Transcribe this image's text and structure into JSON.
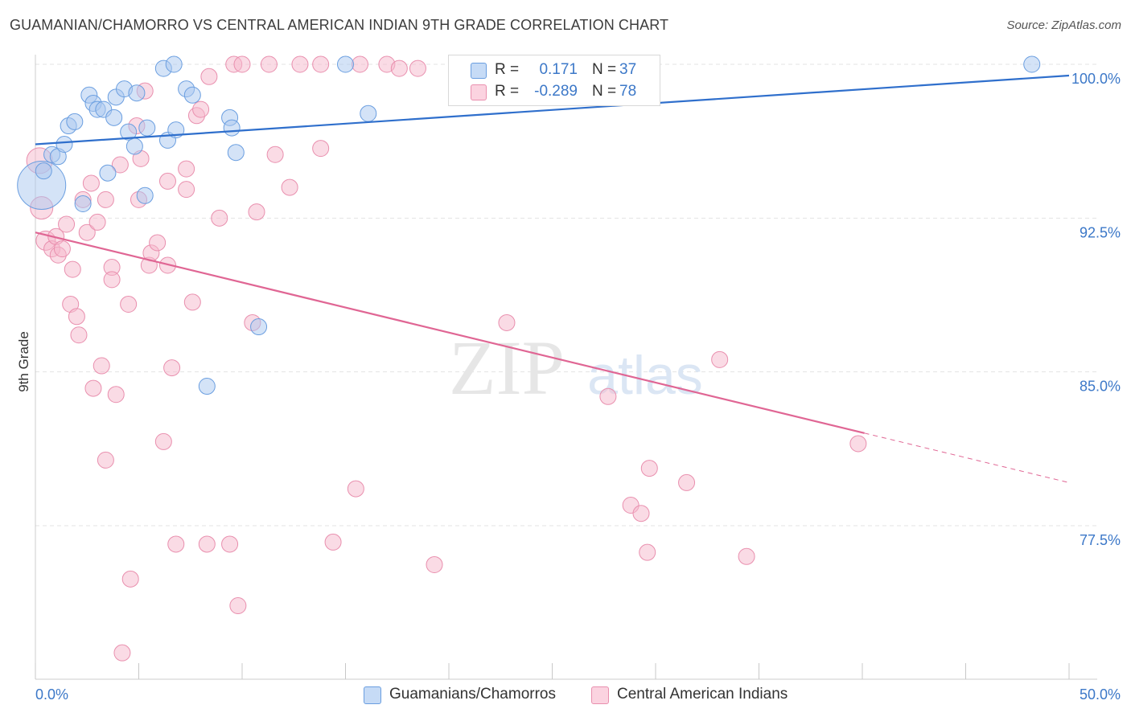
{
  "title": "GUAMANIAN/CHAMORRO VS CENTRAL AMERICAN INDIAN 9TH GRADE CORRELATION CHART",
  "source": "Source: ZipAtlas.com",
  "watermark": {
    "zip": "ZIP",
    "atlas": "atlas"
  },
  "legend": {
    "rows": [
      {
        "r_label": "R =",
        "r_value": "0.171",
        "n_label": "N =",
        "n_value": "37",
        "color": "#a9c8f0"
      },
      {
        "r_label": "R =",
        "r_value": "-0.289",
        "n_label": "N =",
        "n_value": "78",
        "color": "#f5b8cc"
      }
    ]
  },
  "bottom_legend": {
    "items": [
      {
        "label": "Guamanians/Chamorros",
        "color": "#a9c8f0"
      },
      {
        "label": "Central American Indians",
        "color": "#f5b8cc"
      }
    ]
  },
  "chart_data": {
    "type": "scatter",
    "title": "GUAMANIAN/CHAMORRO VS CENTRAL AMERICAN INDIAN 9TH GRADE CORRELATION CHART",
    "xlabel": "",
    "ylabel": "9th Grade",
    "xlim": [
      0,
      50
    ],
    "ylim": [
      71.2,
      100.6
    ],
    "x_tick_labels": [
      "0.0%",
      "50.0%"
    ],
    "y_ticks": [
      100.0,
      92.5,
      85.0,
      77.5
    ],
    "y_tick_labels": [
      "100.0%",
      "92.5%",
      "85.0%",
      "77.5%"
    ],
    "grid": true,
    "colors": {
      "blue_fill": "#a9c8f0",
      "blue_stroke": "#6a9ee0",
      "blue_line": "#2f6fcc",
      "pink_fill": "#f5b8cc",
      "pink_stroke": "#e98fae",
      "pink_line": "#e06694",
      "tick_label": "#3c78c8"
    },
    "series": [
      {
        "name": "Guamanians/Chamorros",
        "trend": {
          "x": [
            0,
            50
          ],
          "y": [
            96.1,
            99.45
          ],
          "dashed_from": null
        },
        "points": [
          [
            0.3,
            94.1,
            30
          ],
          [
            0.4,
            94.8,
            10
          ],
          [
            0.8,
            95.6,
            10
          ],
          [
            1.1,
            95.5,
            10
          ],
          [
            1.4,
            96.1,
            10
          ],
          [
            1.6,
            97.0,
            10
          ],
          [
            1.9,
            97.2,
            10
          ],
          [
            2.3,
            93.2,
            10
          ],
          [
            2.6,
            98.5,
            10
          ],
          [
            2.8,
            98.1,
            10
          ],
          [
            3.0,
            97.8,
            10
          ],
          [
            3.3,
            97.8,
            10
          ],
          [
            3.5,
            94.7,
            10
          ],
          [
            3.8,
            97.4,
            10
          ],
          [
            3.9,
            98.4,
            10
          ],
          [
            4.3,
            98.8,
            10
          ],
          [
            4.5,
            96.7,
            10
          ],
          [
            4.8,
            96.0,
            10
          ],
          [
            4.9,
            98.6,
            10
          ],
          [
            5.3,
            93.6,
            10
          ],
          [
            5.4,
            96.9,
            10
          ],
          [
            6.2,
            99.8,
            10
          ],
          [
            6.4,
            96.3,
            10
          ],
          [
            6.7,
            100.0,
            10
          ],
          [
            6.8,
            96.8,
            10
          ],
          [
            7.3,
            98.8,
            10
          ],
          [
            7.6,
            98.5,
            10
          ],
          [
            8.3,
            84.3,
            10
          ],
          [
            9.4,
            97.4,
            10
          ],
          [
            9.5,
            96.9,
            10
          ],
          [
            9.7,
            95.7,
            10
          ],
          [
            10.8,
            87.2,
            10
          ],
          [
            15.0,
            100.0,
            10
          ],
          [
            16.1,
            97.6,
            10
          ],
          [
            48.2,
            100.0,
            10
          ]
        ]
      },
      {
        "name": "Central American Indians",
        "trend": {
          "x": [
            0,
            50
          ],
          "y": [
            91.8,
            79.6
          ],
          "dashed_from": 40.1
        },
        "points": [
          [
            0.2,
            95.3,
            16
          ],
          [
            0.3,
            93.0,
            14
          ],
          [
            0.5,
            91.4,
            12
          ],
          [
            0.8,
            91.0,
            10
          ],
          [
            1.0,
            91.6,
            10
          ],
          [
            1.1,
            90.7,
            10
          ],
          [
            1.3,
            91.0,
            10
          ],
          [
            1.5,
            92.2,
            10
          ],
          [
            1.7,
            88.3,
            10
          ],
          [
            1.8,
            90.0,
            10
          ],
          [
            2.0,
            87.7,
            10
          ],
          [
            2.1,
            86.8,
            10
          ],
          [
            2.3,
            93.4,
            10
          ],
          [
            2.5,
            91.8,
            10
          ],
          [
            2.7,
            94.2,
            10
          ],
          [
            2.8,
            84.2,
            10
          ],
          [
            3.0,
            92.3,
            10
          ],
          [
            3.2,
            85.3,
            10
          ],
          [
            3.4,
            93.4,
            10
          ],
          [
            3.4,
            80.7,
            10
          ],
          [
            3.7,
            90.1,
            10
          ],
          [
            3.7,
            89.5,
            10
          ],
          [
            3.9,
            83.9,
            10
          ],
          [
            4.1,
            95.1,
            10
          ],
          [
            4.2,
            71.3,
            10
          ],
          [
            4.5,
            88.3,
            10
          ],
          [
            4.6,
            74.9,
            10
          ],
          [
            4.9,
            97.0,
            10
          ],
          [
            5.0,
            93.4,
            10
          ],
          [
            5.1,
            95.4,
            10
          ],
          [
            5.3,
            98.7,
            10
          ],
          [
            5.5,
            90.2,
            10
          ],
          [
            5.6,
            90.8,
            10
          ],
          [
            5.9,
            91.3,
            10
          ],
          [
            6.2,
            81.6,
            10
          ],
          [
            6.4,
            94.3,
            10
          ],
          [
            6.4,
            90.2,
            10
          ],
          [
            6.6,
            85.2,
            10
          ],
          [
            6.8,
            76.6,
            10
          ],
          [
            7.3,
            94.9,
            10
          ],
          [
            7.3,
            93.9,
            10
          ],
          [
            7.6,
            88.4,
            10
          ],
          [
            7.8,
            97.5,
            10
          ],
          [
            8.0,
            97.8,
            10
          ],
          [
            8.3,
            76.6,
            10
          ],
          [
            8.4,
            99.4,
            10
          ],
          [
            8.9,
            92.5,
            10
          ],
          [
            9.4,
            76.6,
            10
          ],
          [
            9.6,
            100.0,
            10
          ],
          [
            9.8,
            73.6,
            10
          ],
          [
            10.0,
            100.0,
            10
          ],
          [
            10.5,
            87.4,
            10
          ],
          [
            10.7,
            92.8,
            10
          ],
          [
            11.3,
            100.0,
            10
          ],
          [
            11.6,
            95.6,
            10
          ],
          [
            12.3,
            94.0,
            10
          ],
          [
            12.8,
            100.0,
            10
          ],
          [
            13.8,
            95.9,
            10
          ],
          [
            13.8,
            100.0,
            10
          ],
          [
            14.4,
            76.7,
            10
          ],
          [
            15.5,
            79.3,
            10
          ],
          [
            15.7,
            100.0,
            10
          ],
          [
            17.0,
            100.0,
            10
          ],
          [
            17.6,
            99.8,
            10
          ],
          [
            18.5,
            99.8,
            10
          ],
          [
            19.3,
            75.6,
            10
          ],
          [
            22.8,
            87.4,
            10
          ],
          [
            27.7,
            83.8,
            10
          ],
          [
            28.8,
            78.5,
            10
          ],
          [
            29.3,
            78.1,
            10
          ],
          [
            29.6,
            76.2,
            10
          ],
          [
            29.7,
            80.3,
            10
          ],
          [
            31.5,
            79.6,
            10
          ],
          [
            33.1,
            85.6,
            10
          ],
          [
            34.4,
            76.0,
            10
          ],
          [
            39.8,
            81.5,
            10
          ]
        ]
      }
    ]
  }
}
